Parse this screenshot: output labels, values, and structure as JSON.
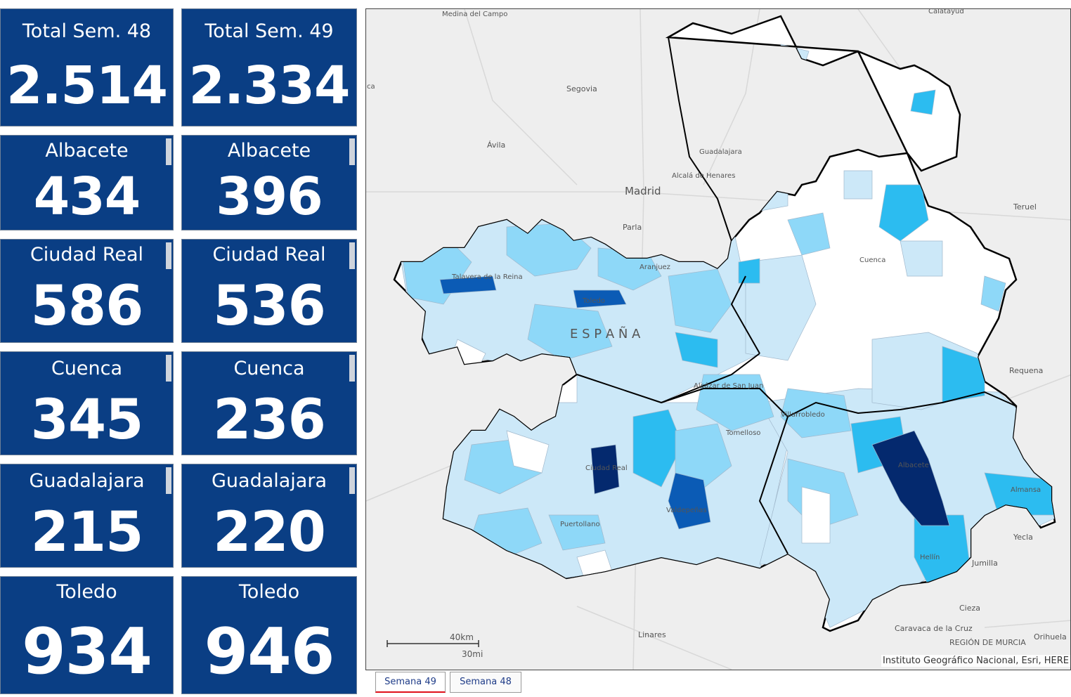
{
  "cards_left": [
    {
      "label": "Total Sem. 48",
      "value": "2.514"
    },
    {
      "label": "Albacete",
      "value": "434"
    },
    {
      "label": "Ciudad Real",
      "value": "586"
    },
    {
      "label": "Cuenca",
      "value": "345"
    },
    {
      "label": "Guadalajara",
      "value": "215"
    },
    {
      "label": "Toledo",
      "value": "934"
    }
  ],
  "cards_right": [
    {
      "label": "Total Sem. 49",
      "value": "2.334"
    },
    {
      "label": "Albacete",
      "value": "396"
    },
    {
      "label": "Ciudad Real",
      "value": "536"
    },
    {
      "label": "Cuenca",
      "value": "236"
    },
    {
      "label": "Guadalajara",
      "value": "220"
    },
    {
      "label": "Toledo",
      "value": "946"
    }
  ],
  "colors": {
    "card_bg": "#0a3e84",
    "choropleth_classes": [
      "#ffffff",
      "#cce8f8",
      "#8ed8f8",
      "#2cbcf0",
      "#0b5bb5",
      "#04296e"
    ],
    "map_background": "#eeeeee"
  },
  "map": {
    "labels": {
      "medina": "Medina del Campo",
      "segovia": "Segovia",
      "avila": "Ávila",
      "madrid": "Madrid",
      "parla": "Parla",
      "alcala": "Alcalá de Henares",
      "calatayud": "Calatayud",
      "teruel": "Teruel",
      "requena": "Requena",
      "yecla": "Yecla",
      "jumilla": "Jumilla",
      "cieza": "Cieza",
      "caravaca": "Caravaca de la Cruz",
      "linares": "Linares",
      "orihuela": "Orihuela",
      "region": "REGIÓN DE MURCIA",
      "murcia": "Murcia",
      "ca": "ca",
      "guadalajara": "Guadalajara",
      "cuenca": "Cuenca",
      "talavera": "Talavera de la Reina",
      "aranjuez": "Aranjuez",
      "toledo": "Toledo",
      "espana": "E S P A Ñ A",
      "alcazar": "Alcázar de San Juan",
      "villarrobledo": "Villarrobledo",
      "tomelloso": "Tomelloso",
      "ciudad_real": "Ciudad Real",
      "albacete": "Albacete",
      "almansa": "Almansa",
      "valdepenas": "Valdepeñas",
      "puertollano": "Puertollano",
      "hellin": "Hellín"
    },
    "scale_km": "40km",
    "scale_mi": "30mi",
    "attribution": "Instituto Geográfico Nacional, Esri, HERE"
  },
  "tabs": [
    {
      "label": "Semana 49",
      "active": true
    },
    {
      "label": "Semana 48",
      "active": false
    }
  ]
}
